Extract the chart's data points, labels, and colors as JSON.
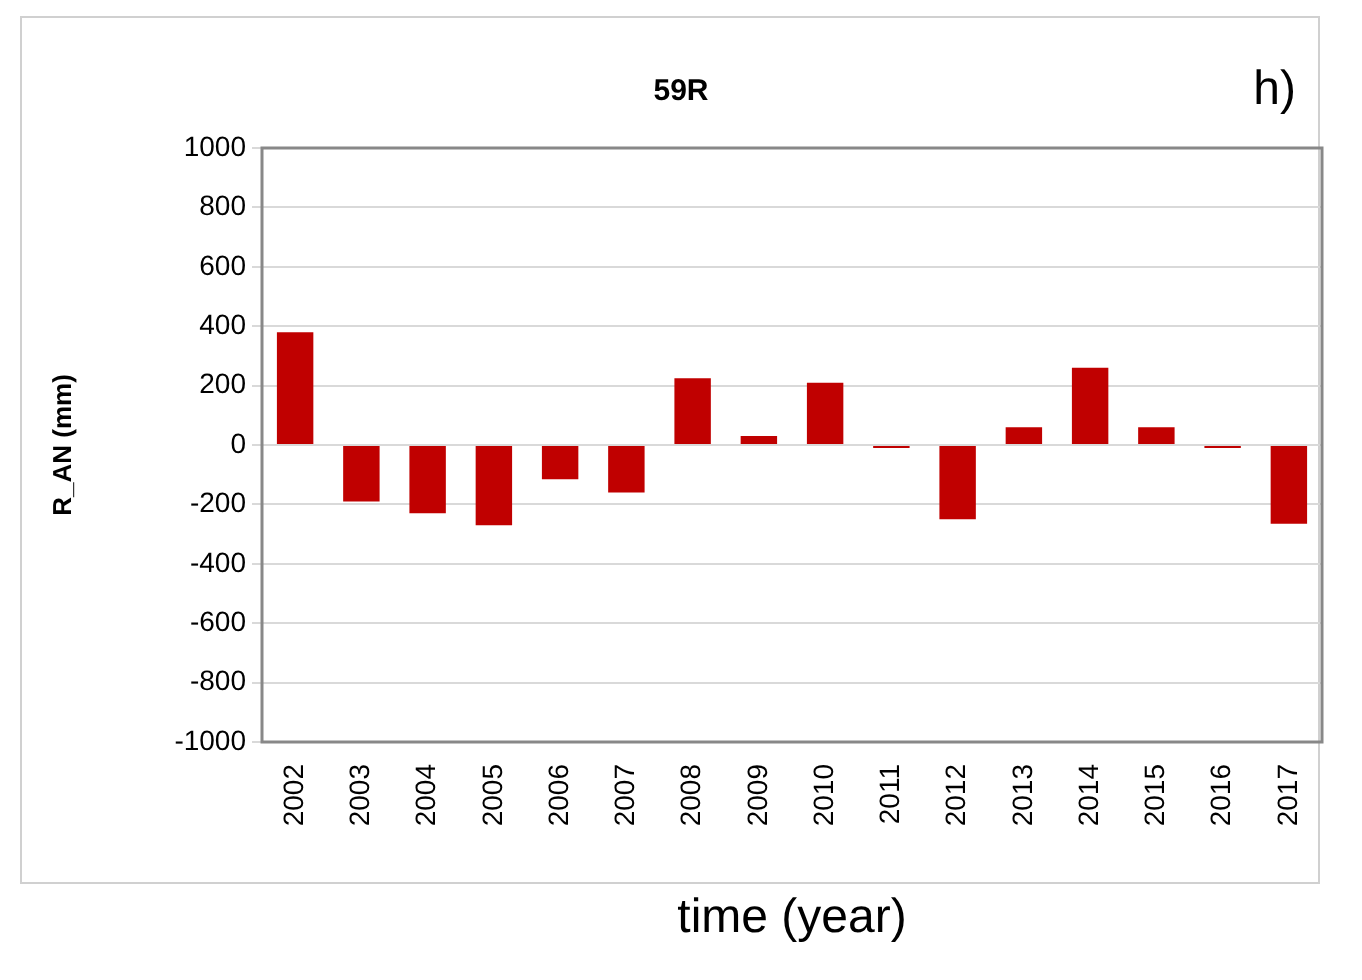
{
  "chart_data": {
    "type": "bar",
    "title": "59R",
    "xlabel": "time (year)",
    "ylabel": "R_AN (mm)",
    "annotations": [
      "h)"
    ],
    "categories": [
      "2002",
      "2003",
      "2004",
      "2005",
      "2006",
      "2007",
      "2008",
      "2009",
      "2010",
      "2011",
      "2012",
      "2013",
      "2014",
      "2015",
      "2016",
      "2017"
    ],
    "values": [
      380,
      -190,
      -230,
      -270,
      -115,
      -160,
      225,
      30,
      210,
      -10,
      -250,
      60,
      260,
      60,
      -10,
      -265
    ],
    "color": "#c00000",
    "ylim": [
      -1000,
      1000
    ],
    "yticks": [
      -1000,
      -800,
      -600,
      -400,
      -200,
      0,
      200,
      400,
      600,
      800,
      1000
    ],
    "grid": "y",
    "legend": false
  }
}
